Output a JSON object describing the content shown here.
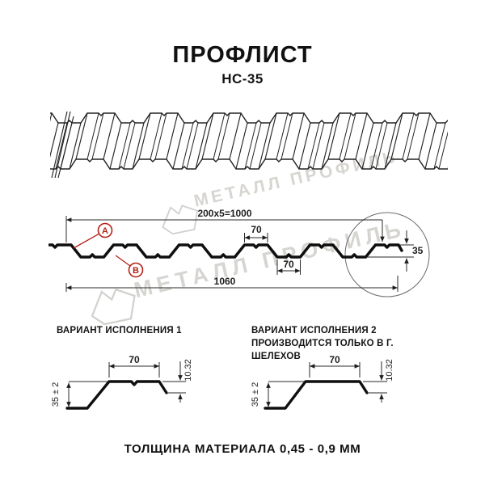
{
  "page": {
    "title": "ПРОФЛИСТ",
    "subtitle": "НС-35"
  },
  "cross_section": {
    "dim_total_top": "200x5=1000",
    "dim_rib_top": "70",
    "dim_rib_bottom": "70",
    "dim_total_width": "1060",
    "dim_height": "35",
    "point_a": "A",
    "point_b": "B"
  },
  "variant1": {
    "title": "ВАРИАНТ ИСПОЛНЕНИЯ 1",
    "subtitle": "",
    "dim_top": "70",
    "dim_lip": "10.32",
    "dim_height": "35 ± 2"
  },
  "variant2": {
    "title": "ВАРИАНТ ИСПОЛНЕНИЯ 2",
    "subtitle": "ПРОИЗВОДИТСЯ ТОЛЬКО В Г. ШЕЛЕХОВ",
    "dim_top": "70",
    "dim_lip": "10.32",
    "dim_height": "35 ± 2"
  },
  "footer": {
    "note": "ТОЛЩИНА МАТЕРИАЛА 0,45 - 0,9 ММ"
  },
  "watermark": {
    "text": "МЕТАЛЛ ПРОФИЛЬ"
  },
  "colors": {
    "accent_red": "#b3231b",
    "line": "#1e1e1e",
    "watermark": "#d7d5d1"
  }
}
